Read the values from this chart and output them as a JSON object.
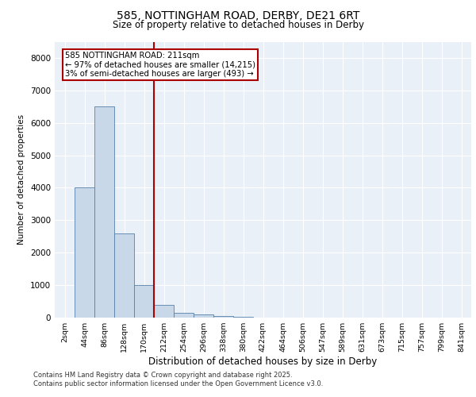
{
  "title1": "585, NOTTINGHAM ROAD, DERBY, DE21 6RT",
  "title2": "Size of property relative to detached houses in Derby",
  "xlabel": "Distribution of detached houses by size in Derby",
  "ylabel": "Number of detached properties",
  "bar_labels": [
    "2sqm",
    "44sqm",
    "86sqm",
    "128sqm",
    "170sqm",
    "212sqm",
    "254sqm",
    "296sqm",
    "338sqm",
    "380sqm",
    "422sqm",
    "464sqm",
    "506sqm",
    "547sqm",
    "589sqm",
    "631sqm",
    "673sqm",
    "715sqm",
    "757sqm",
    "799sqm",
    "841sqm"
  ],
  "bar_values": [
    5,
    4000,
    6500,
    2600,
    1000,
    400,
    150,
    100,
    50,
    30,
    10,
    5,
    2,
    1,
    0,
    0,
    0,
    0,
    0,
    0,
    0
  ],
  "bar_color": "#c8d8e8",
  "bar_edge_color": "#5580aa",
  "vline_x": 4.5,
  "vline_color": "#aa0000",
  "annotation_lines": [
    "585 NOTTINGHAM ROAD: 211sqm",
    "← 97% of detached houses are smaller (14,215)",
    "3% of semi-detached houses are larger (493) →"
  ],
  "ylim": [
    0,
    8500
  ],
  "yticks": [
    0,
    1000,
    2000,
    3000,
    4000,
    5000,
    6000,
    7000,
    8000
  ],
  "bg_color": "#eaf0f8",
  "footnote1": "Contains HM Land Registry data © Crown copyright and database right 2025.",
  "footnote2": "Contains public sector information licensed under the Open Government Licence v3.0."
}
